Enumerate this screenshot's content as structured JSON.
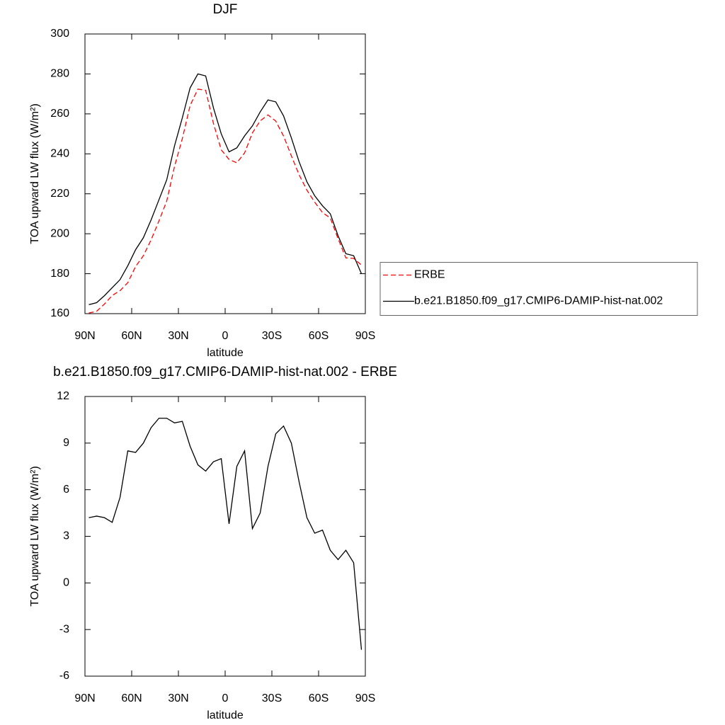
{
  "chart_data": [
    {
      "type": "line",
      "title": "DJF",
      "xlabel": "latitude",
      "ylabel": "TOA upward LW flux (W/m²)",
      "x": [
        87.5,
        82.5,
        77.5,
        72.5,
        67.5,
        62.5,
        57.5,
        52.5,
        47.5,
        42.5,
        37.5,
        32.5,
        27.5,
        22.5,
        17.5,
        12.5,
        7.5,
        2.5,
        -2.5,
        -7.5,
        -12.5,
        -17.5,
        -22.5,
        -27.5,
        -32.5,
        -37.5,
        -42.5,
        -47.5,
        -52.5,
        -57.5,
        -62.5,
        -67.5,
        -72.5,
        -77.5,
        -82.5,
        -87.5
      ],
      "series": [
        {
          "name": "ERBE",
          "color": "#ff0000",
          "dashed": true,
          "values": [
            160.3,
            161.2,
            164.8,
            169.1,
            171.5,
            175.5,
            183.6,
            189,
            197,
            206.4,
            216.4,
            233.7,
            247.6,
            264.2,
            272.4,
            271.8,
            255.2,
            242,
            237.2,
            235.5,
            240.5,
            250.5,
            256.5,
            259.5,
            256.4,
            248.9,
            239,
            229.5,
            221.8,
            215.8,
            210.6,
            207.9,
            197.5,
            187.9,
            187.7,
            184.3
          ]
        },
        {
          "name": "b.e21.B1850.f09_g17.CMIP6-DAMIP-hist-nat.002",
          "color": "#000000",
          "dashed": false,
          "values": [
            164.5,
            165.5,
            169,
            173,
            177,
            184,
            192,
            198,
            207,
            217,
            227,
            244,
            258,
            273,
            280,
            279,
            263,
            250,
            241,
            243,
            249,
            254,
            261,
            267,
            266,
            259,
            248,
            236,
            226,
            219,
            214,
            210,
            199,
            190,
            189,
            180
          ]
        }
      ],
      "xlim": [
        90,
        -90
      ],
      "xticks": [
        {
          "value": 90,
          "label": "90N"
        },
        {
          "value": 60,
          "label": "60N"
        },
        {
          "value": 30,
          "label": "30N"
        },
        0,
        {
          "value": -30,
          "label": "30S"
        },
        {
          "value": -60,
          "label": "60S"
        },
        {
          "value": -90,
          "label": "90S"
        }
      ],
      "ylim": [
        160,
        300
      ],
      "yticks": [
        160,
        180,
        200,
        220,
        240,
        260,
        280,
        300
      ],
      "legend": "right"
    },
    {
      "type": "line",
      "title": "b.e21.B1850.f09_g17.CMIP6-DAMIP-hist-nat.002 - ERBE",
      "xlabel": "latitude",
      "ylabel": "TOA upward LW flux (W/m²)",
      "x": [
        87.5,
        82.5,
        77.5,
        72.5,
        67.5,
        62.5,
        57.5,
        52.5,
        47.5,
        42.5,
        37.5,
        32.5,
        27.5,
        22.5,
        17.5,
        12.5,
        7.5,
        2.5,
        -2.5,
        -7.5,
        -12.5,
        -17.5,
        -22.5,
        -27.5,
        -32.5,
        -37.5,
        -42.5,
        -47.5,
        -52.5,
        -57.5,
        -62.5,
        -67.5,
        -72.5,
        -77.5,
        -82.5,
        -87.5
      ],
      "color": "#000000",
      "values": [
        4.2,
        4.3,
        4.2,
        3.9,
        5.5,
        8.5,
        8.4,
        9.0,
        10.0,
        10.6,
        10.6,
        10.3,
        10.4,
        8.8,
        7.6,
        7.2,
        7.8,
        8.0,
        3.8,
        7.5,
        8.5,
        3.5,
        4.5,
        7.5,
        9.6,
        10.1,
        9.0,
        6.5,
        4.2,
        3.2,
        3.4,
        2.1,
        1.5,
        2.1,
        1.3,
        -4.3
      ],
      "xlim": [
        90,
        -90
      ],
      "xticks": [
        {
          "value": 90,
          "label": "90N"
        },
        {
          "value": 60,
          "label": "60N"
        },
        {
          "value": 30,
          "label": "30N"
        },
        0,
        {
          "value": -30,
          "label": "30S"
        },
        {
          "value": -60,
          "label": "60S"
        },
        {
          "value": -90,
          "label": "90S"
        }
      ],
      "ylim": [
        -6,
        12
      ],
      "yticks": [
        -6,
        -3,
        0,
        3,
        6,
        9,
        12
      ]
    }
  ]
}
